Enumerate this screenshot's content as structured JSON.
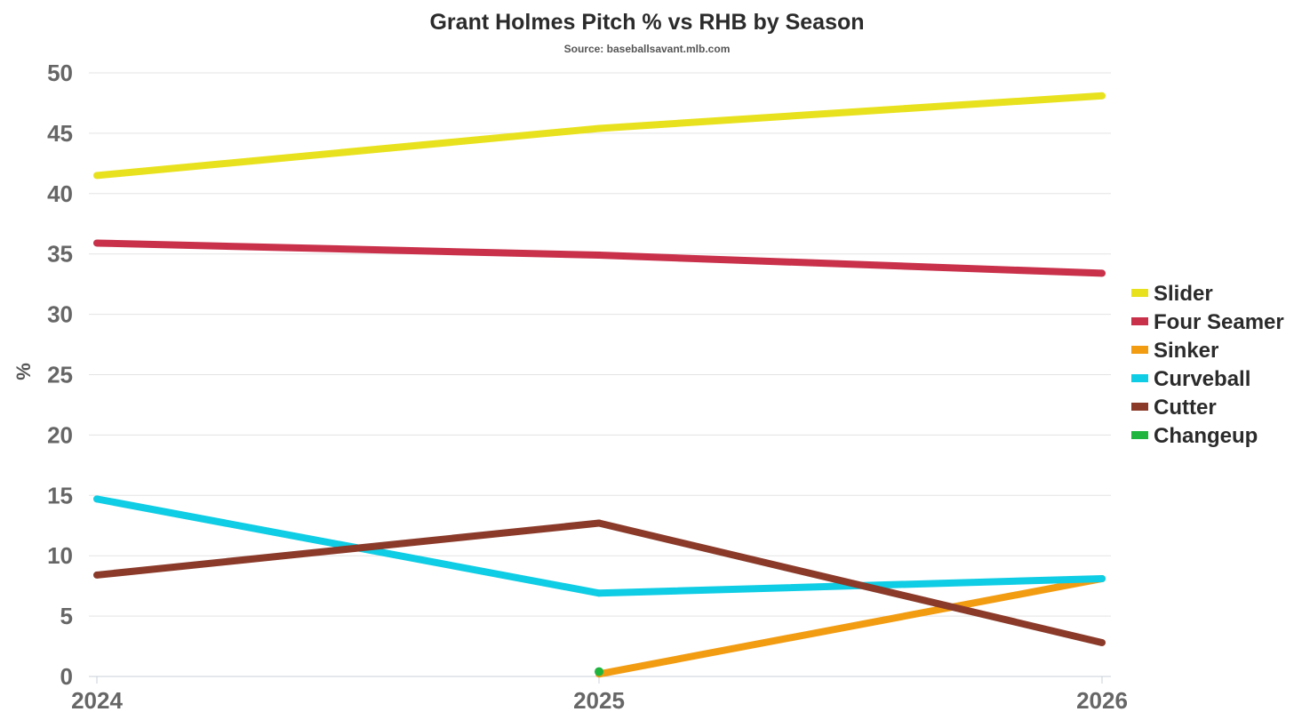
{
  "chart_data": {
    "type": "line",
    "title": "Grant Holmes Pitch % vs RHB by Season",
    "subtitle": "Source: baseballsavant.mlb.com",
    "xlabel": "",
    "ylabel": "%",
    "categories": [
      "2024",
      "2025",
      "2026"
    ],
    "ylim": [
      0,
      50
    ],
    "yticks": [
      "0",
      "5",
      "10",
      "15",
      "20",
      "25",
      "30",
      "35",
      "40",
      "45",
      "50"
    ],
    "grid": true,
    "legend_position": "right",
    "series": [
      {
        "name": "Slider",
        "color": "#e8e21e",
        "values": [
          41.5,
          45.4,
          48.1
        ]
      },
      {
        "name": "Four Seamer",
        "color": "#c9304a",
        "values": [
          35.9,
          34.9,
          33.4
        ]
      },
      {
        "name": "Sinker",
        "color": "#f29c12",
        "values": [
          null,
          0.2,
          8.1
        ]
      },
      {
        "name": "Curveball",
        "color": "#0fcde4",
        "values": [
          14.7,
          6.9,
          8.1
        ]
      },
      {
        "name": "Cutter",
        "color": "#8b3a2a",
        "values": [
          8.4,
          12.7,
          2.8
        ]
      },
      {
        "name": "Changeup",
        "color": "#1fb53f",
        "values": [
          null,
          0.4,
          null
        ]
      }
    ]
  }
}
